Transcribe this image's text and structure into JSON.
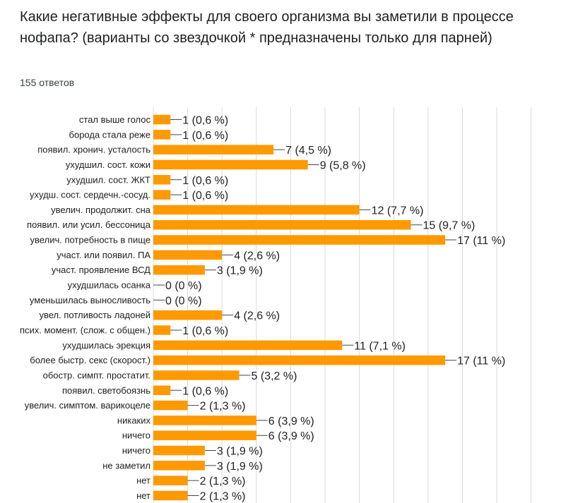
{
  "title": "Какие негативные эффекты для своего организма вы заметили в процессе нофапа? (варианты со звездочкой * предназначены только для парней)",
  "response_count": "155 ответов",
  "colors": {
    "bar": "#ff9900",
    "grid": "#d9d9d9",
    "connector": "#444444",
    "text": "#202124"
  },
  "chart_data": {
    "type": "bar",
    "orientation": "horizontal",
    "grid": true,
    "categories": [
      "стал выше голос",
      "борода стала реже",
      "появил. хронич. усталость",
      "ухудшил. сост. кожи",
      "ухудшил. сост. ЖКТ",
      "ухудш. сост. сердечн.-сосуд.",
      "увелич. продолжит. сна",
      "появил. или усил. бессоница",
      "увелич. потребность в пище",
      "участ. или появил. ПА",
      "участ. проявление ВСД",
      "ухудшилась осанка",
      "уменьшилась выносливость",
      "увел. потливость ладоней",
      "псих. момент. (слож. с общен.)",
      "ухудшилась эрекция",
      "более быстр. секс (скорост.)",
      "обостр. симпт. простатит.",
      "появил. светобоязнь",
      "увелич. симптом. варикоцеле",
      "никаких",
      "ничего",
      "ничего",
      "не заметил",
      "нет",
      "нет"
    ],
    "values": [
      1,
      1,
      7,
      9,
      1,
      1,
      12,
      15,
      17,
      4,
      3,
      0,
      0,
      4,
      1,
      11,
      17,
      5,
      1,
      2,
      6,
      6,
      3,
      3,
      2,
      2
    ],
    "value_labels": [
      "1 (0,6 %)",
      "1 (0,6 %)",
      "7 (4,5 %)",
      "9 (5,8 %)",
      "1 (0,6 %)",
      "1 (0,6 %)",
      "12 (7,7 %)",
      "15 (9,7 %)",
      "17 (11 %)",
      "4 (2,6 %)",
      "3 (1,9 %)",
      "0 (0 %)",
      "0 (0 %)",
      "4 (2,6 %)",
      "1 (0,6 %)",
      "11 (7,1 %)",
      "17 (11 %)",
      "5 (3,2 %)",
      "1 (0,6 %)",
      "2 (1,3 %)",
      "6 (3,9 %)",
      "6 (3,9 %)",
      "3 (1,9 %)",
      "3 (1,9 %)",
      "2 (1,3 %)",
      "2 (1,3 %)"
    ],
    "xlim": [
      0,
      23
    ]
  }
}
